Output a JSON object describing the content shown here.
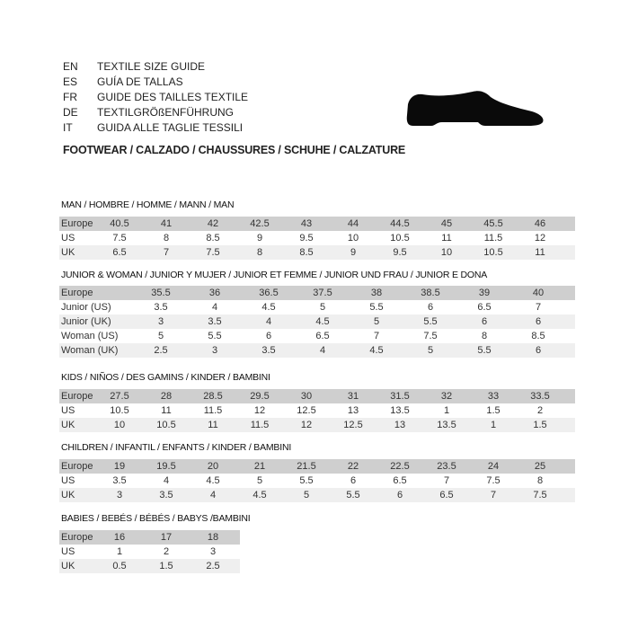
{
  "header": {
    "languages": [
      {
        "code": "EN",
        "text": "TEXTILE SIZE GUIDE"
      },
      {
        "code": "ES",
        "text": "GUÍA DE TALLAS"
      },
      {
        "code": "FR",
        "text": "GUIDE DES TAILLES TEXTILE"
      },
      {
        "code": "DE",
        "text": "TEXTILGRÖßENFÜHRUNG"
      },
      {
        "code": "IT",
        "text": "GUIDA ALLE TAGLIE TESSILI"
      }
    ],
    "footwear": "FOOTWEAR / CALZADO / CHAUSSURES / SCHUHE / CALZATURE",
    "icon": "shoe-icon"
  },
  "tables": [
    {
      "title": "MAN / HOMBRE / HOMME / MANN / MAN",
      "rows": [
        {
          "label": "Europe",
          "values": [
            "40.5",
            "41",
            "42",
            "42.5",
            "43",
            "44",
            "44.5",
            "45",
            "45.5",
            "46"
          ]
        },
        {
          "label": "US",
          "values": [
            "7.5",
            "8",
            "8.5",
            "9",
            "9.5",
            "10",
            "10.5",
            "11",
            "11.5",
            "12"
          ]
        },
        {
          "label": "UK",
          "values": [
            "6.5",
            "7",
            "7.5",
            "8",
            "8.5",
            "9",
            "9.5",
            "10",
            "10.5",
            "11"
          ]
        }
      ]
    },
    {
      "title": "JUNIOR & WOMAN / JUNIOR Y MUJER / JUNIOR ET FEMME / JUNIOR UND FRAU / JUNIOR E DONA",
      "rows": [
        {
          "label": "Europe",
          "values": [
            "35.5",
            "36",
            "36.5",
            "37.5",
            "38",
            "38.5",
            "39",
            "40"
          ]
        },
        {
          "label": "Junior (US)",
          "values": [
            "3.5",
            "4",
            "4.5",
            "5",
            "5.5",
            "6",
            "6.5",
            "7"
          ]
        },
        {
          "label": "Junior (UK)",
          "values": [
            "3",
            "3.5",
            "4",
            "4.5",
            "5",
            "5.5",
            "6",
            "6"
          ]
        },
        {
          "label": "Woman (US)",
          "values": [
            "5",
            "5.5",
            "6",
            "6.5",
            "7",
            "7.5",
            "8",
            "8.5"
          ]
        },
        {
          "label": "Woman (UK)",
          "values": [
            "2.5",
            "3",
            "3.5",
            "4",
            "4.5",
            "5",
            "5.5",
            "6"
          ]
        }
      ]
    },
    {
      "title": "KIDS / NIÑOS / DES GAMINS / KINDER / BAMBINI",
      "rows": [
        {
          "label": "Europe",
          "values": [
            "27.5",
            "28",
            "28.5",
            "29.5",
            "30",
            "31",
            "31.5",
            "32",
            "33",
            "33.5"
          ]
        },
        {
          "label": "US",
          "values": [
            "10.5",
            "11",
            "11.5",
            "12",
            "12.5",
            "13",
            "13.5",
            "1",
            "1.5",
            "2"
          ]
        },
        {
          "label": "UK",
          "values": [
            "10",
            "10.5",
            "11",
            "11.5",
            "12",
            "12.5",
            "13",
            "13.5",
            "1",
            "1.5"
          ]
        }
      ]
    },
    {
      "title": "CHILDREN / INFANTIL / ENFANTS / KINDER / BAMBINI",
      "rows": [
        {
          "label": "Europe",
          "values": [
            "19",
            "19.5",
            "20",
            "21",
            "21.5",
            "22",
            "22.5",
            "23.5",
            "24",
            "25"
          ]
        },
        {
          "label": "US",
          "values": [
            "3.5",
            "4",
            "4.5",
            "5",
            "5.5",
            "6",
            "6.5",
            "7",
            "7.5",
            "8"
          ]
        },
        {
          "label": "UK",
          "values": [
            "3",
            "3.5",
            "4",
            "4.5",
            "5",
            "5.5",
            "6",
            "6.5",
            "7",
            "7.5"
          ]
        }
      ]
    },
    {
      "title": "BABIES  / BEBÉS / BÉBÉS / BABYS /BAMBINI",
      "rows": [
        {
          "label": "Europe",
          "values": [
            "16",
            "17",
            "18"
          ]
        },
        {
          "label": "US",
          "values": [
            "1",
            "2",
            "3"
          ]
        },
        {
          "label": "UK",
          "values": [
            "0.5",
            "1.5",
            "2.5"
          ]
        }
      ]
    }
  ]
}
